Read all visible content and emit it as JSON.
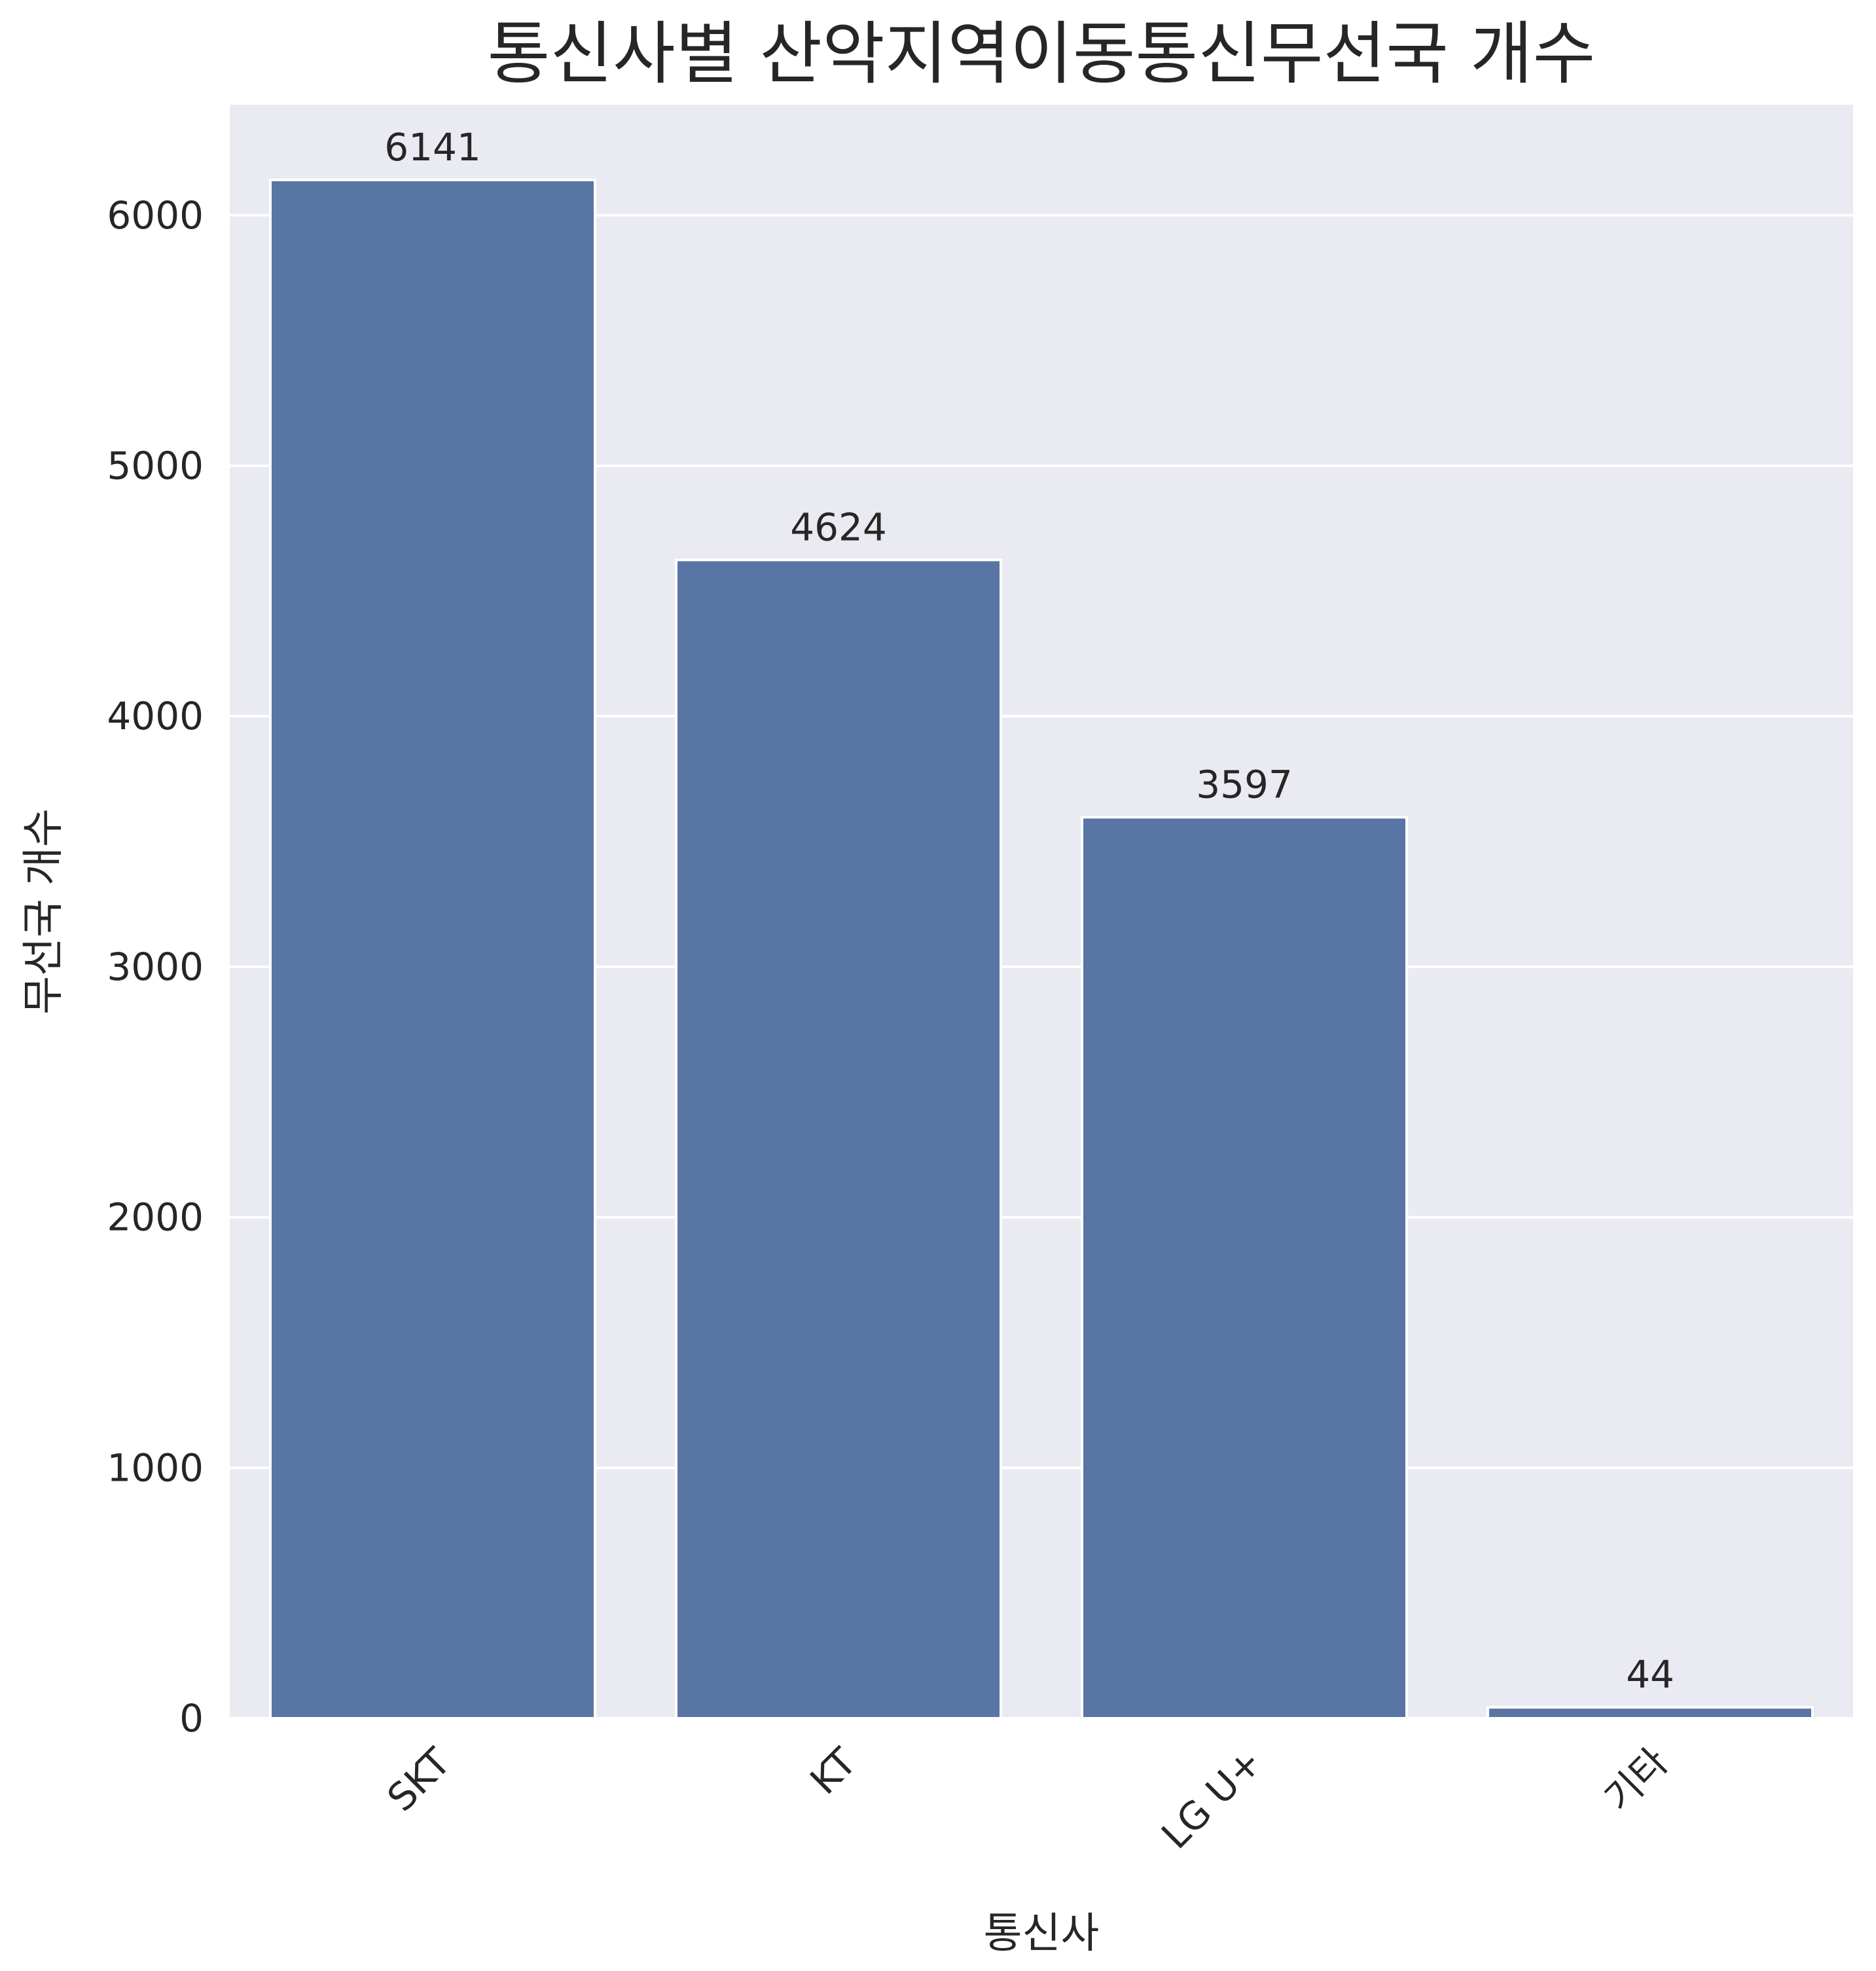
{
  "chart_data": {
    "type": "bar",
    "title": "통신사별 산악지역이동통신무선국 개수",
    "xlabel": "통신사",
    "ylabel": "무선국 개수",
    "categories": [
      "SKT",
      "KT",
      "LG U+",
      "기타"
    ],
    "values": [
      6141,
      4624,
      3597,
      44
    ],
    "data_labels": [
      "6141",
      "4624",
      "3597",
      "44"
    ],
    "ylim": [
      0,
      6441
    ],
    "y_ticks": [
      0,
      1000,
      2000,
      3000,
      4000,
      5000,
      6000
    ],
    "y_tick_labels": [
      "0",
      "1000",
      "2000",
      "3000",
      "4000",
      "5000",
      "6000"
    ],
    "grid": true,
    "x_tick_rotation": "45 degrees",
    "colors": {
      "bar": "#5975a4",
      "bar_edge": "#ffffff",
      "plot_background": "#eaeaf2",
      "grid": "#ffffff",
      "text": "#262626"
    }
  }
}
